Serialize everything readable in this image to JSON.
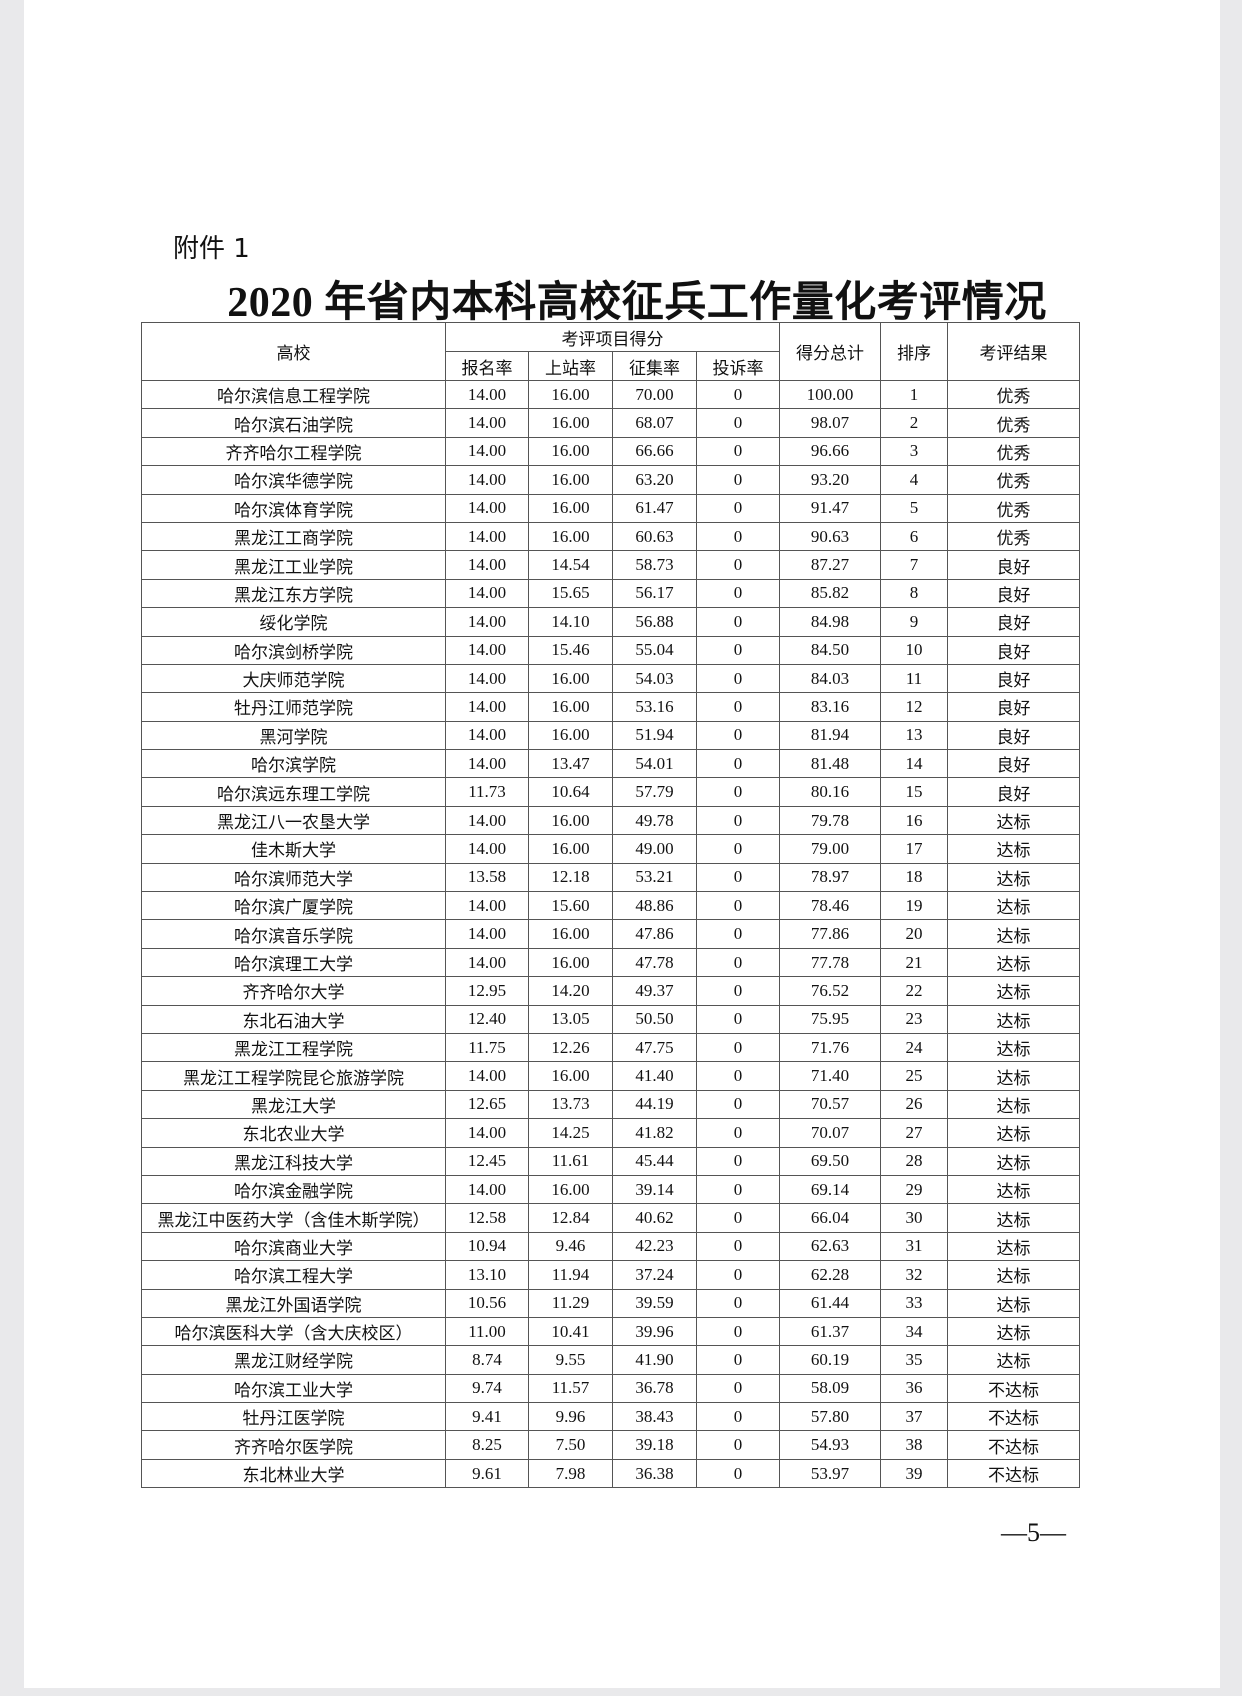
{
  "attachment_label": "附件 1",
  "title": "2020 年省内本科高校征兵工作量化考评情况",
  "table": {
    "headers": {
      "school": "高校",
      "group": "考评项目得分",
      "sub": [
        "报名率",
        "上站率",
        "征集率",
        "投诉率"
      ],
      "total": "得分总计",
      "rank": "排序",
      "result": "考评结果"
    },
    "rows": [
      [
        "哈尔滨信息工程学院",
        "14.00",
        "16.00",
        "70.00",
        "0",
        "100.00",
        "1",
        "优秀"
      ],
      [
        "哈尔滨石油学院",
        "14.00",
        "16.00",
        "68.07",
        "0",
        "98.07",
        "2",
        "优秀"
      ],
      [
        "齐齐哈尔工程学院",
        "14.00",
        "16.00",
        "66.66",
        "0",
        "96.66",
        "3",
        "优秀"
      ],
      [
        "哈尔滨华德学院",
        "14.00",
        "16.00",
        "63.20",
        "0",
        "93.20",
        "4",
        "优秀"
      ],
      [
        "哈尔滨体育学院",
        "14.00",
        "16.00",
        "61.47",
        "0",
        "91.47",
        "5",
        "优秀"
      ],
      [
        "黑龙江工商学院",
        "14.00",
        "16.00",
        "60.63",
        "0",
        "90.63",
        "6",
        "优秀"
      ],
      [
        "黑龙江工业学院",
        "14.00",
        "14.54",
        "58.73",
        "0",
        "87.27",
        "7",
        "良好"
      ],
      [
        "黑龙江东方学院",
        "14.00",
        "15.65",
        "56.17",
        "0",
        "85.82",
        "8",
        "良好"
      ],
      [
        "绥化学院",
        "14.00",
        "14.10",
        "56.88",
        "0",
        "84.98",
        "9",
        "良好"
      ],
      [
        "哈尔滨剑桥学院",
        "14.00",
        "15.46",
        "55.04",
        "0",
        "84.50",
        "10",
        "良好"
      ],
      [
        "大庆师范学院",
        "14.00",
        "16.00",
        "54.03",
        "0",
        "84.03",
        "11",
        "良好"
      ],
      [
        "牡丹江师范学院",
        "14.00",
        "16.00",
        "53.16",
        "0",
        "83.16",
        "12",
        "良好"
      ],
      [
        "黑河学院",
        "14.00",
        "16.00",
        "51.94",
        "0",
        "81.94",
        "13",
        "良好"
      ],
      [
        "哈尔滨学院",
        "14.00",
        "13.47",
        "54.01",
        "0",
        "81.48",
        "14",
        "良好"
      ],
      [
        "哈尔滨远东理工学院",
        "11.73",
        "10.64",
        "57.79",
        "0",
        "80.16",
        "15",
        "良好"
      ],
      [
        "黑龙江八一农垦大学",
        "14.00",
        "16.00",
        "49.78",
        "0",
        "79.78",
        "16",
        "达标"
      ],
      [
        "佳木斯大学",
        "14.00",
        "16.00",
        "49.00",
        "0",
        "79.00",
        "17",
        "达标"
      ],
      [
        "哈尔滨师范大学",
        "13.58",
        "12.18",
        "53.21",
        "0",
        "78.97",
        "18",
        "达标"
      ],
      [
        "哈尔滨广厦学院",
        "14.00",
        "15.60",
        "48.86",
        "0",
        "78.46",
        "19",
        "达标"
      ],
      [
        "哈尔滨音乐学院",
        "14.00",
        "16.00",
        "47.86",
        "0",
        "77.86",
        "20",
        "达标"
      ],
      [
        "哈尔滨理工大学",
        "14.00",
        "16.00",
        "47.78",
        "0",
        "77.78",
        "21",
        "达标"
      ],
      [
        "齐齐哈尔大学",
        "12.95",
        "14.20",
        "49.37",
        "0",
        "76.52",
        "22",
        "达标"
      ],
      [
        "东北石油大学",
        "12.40",
        "13.05",
        "50.50",
        "0",
        "75.95",
        "23",
        "达标"
      ],
      [
        "黑龙江工程学院",
        "11.75",
        "12.26",
        "47.75",
        "0",
        "71.76",
        "24",
        "达标"
      ],
      [
        "黑龙江工程学院昆仑旅游学院",
        "14.00",
        "16.00",
        "41.40",
        "0",
        "71.40",
        "25",
        "达标"
      ],
      [
        "黑龙江大学",
        "12.65",
        "13.73",
        "44.19",
        "0",
        "70.57",
        "26",
        "达标"
      ],
      [
        "东北农业大学",
        "14.00",
        "14.25",
        "41.82",
        "0",
        "70.07",
        "27",
        "达标"
      ],
      [
        "黑龙江科技大学",
        "12.45",
        "11.61",
        "45.44",
        "0",
        "69.50",
        "28",
        "达标"
      ],
      [
        "哈尔滨金融学院",
        "14.00",
        "16.00",
        "39.14",
        "0",
        "69.14",
        "29",
        "达标"
      ],
      [
        "黑龙江中医药大学（含佳木斯学院）",
        "12.58",
        "12.84",
        "40.62",
        "0",
        "66.04",
        "30",
        "达标"
      ],
      [
        "哈尔滨商业大学",
        "10.94",
        "9.46",
        "42.23",
        "0",
        "62.63",
        "31",
        "达标"
      ],
      [
        "哈尔滨工程大学",
        "13.10",
        "11.94",
        "37.24",
        "0",
        "62.28",
        "32",
        "达标"
      ],
      [
        "黑龙江外国语学院",
        "10.56",
        "11.29",
        "39.59",
        "0",
        "61.44",
        "33",
        "达标"
      ],
      [
        "哈尔滨医科大学（含大庆校区）",
        "11.00",
        "10.41",
        "39.96",
        "0",
        "61.37",
        "34",
        "达标"
      ],
      [
        "黑龙江财经学院",
        "8.74",
        "9.55",
        "41.90",
        "0",
        "60.19",
        "35",
        "达标"
      ],
      [
        "哈尔滨工业大学",
        "9.74",
        "11.57",
        "36.78",
        "0",
        "58.09",
        "36",
        "不达标"
      ],
      [
        "牡丹江医学院",
        "9.41",
        "9.96",
        "38.43",
        "0",
        "57.80",
        "37",
        "不达标"
      ],
      [
        "齐齐哈尔医学院",
        "8.25",
        "7.50",
        "39.18",
        "0",
        "54.93",
        "38",
        "不达标"
      ],
      [
        "东北林业大学",
        "9.61",
        "7.98",
        "36.38",
        "0",
        "53.97",
        "39",
        "不达标"
      ]
    ]
  },
  "page_number": "—5—"
}
